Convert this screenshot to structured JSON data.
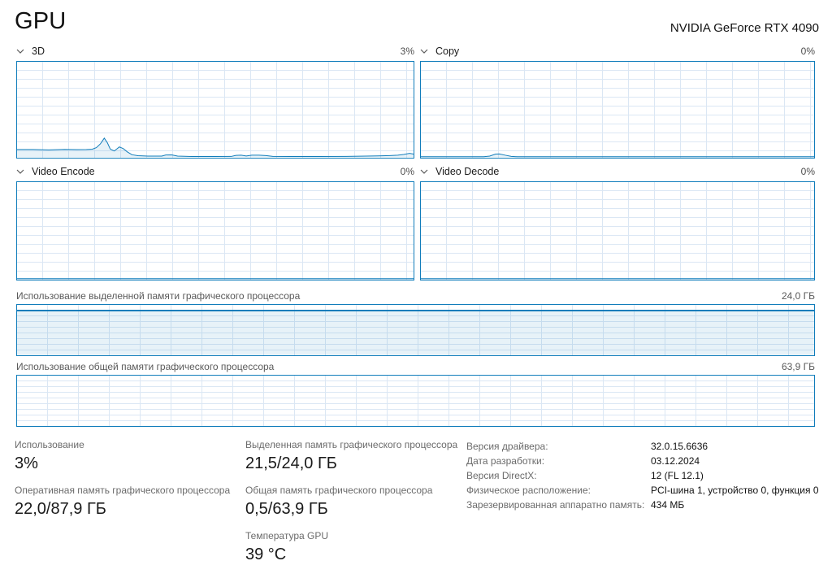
{
  "page": {
    "title": "GPU",
    "device_name": "NVIDIA GeForce RTX 4090"
  },
  "colors": {
    "accent": "#117DBB",
    "grid": "#DBE7F4",
    "chart_fill": "rgba(17,125,187,0.10)",
    "label_gray": "#6B6B6B"
  },
  "charts": [
    {
      "title": "3D",
      "value": "3%",
      "type": "area",
      "y_max_percent": 100,
      "points": [
        [
          0,
          8
        ],
        [
          0.04,
          8
        ],
        [
          0.08,
          7.6
        ],
        [
          0.12,
          8.2
        ],
        [
          0.15,
          7.9
        ],
        [
          0.175,
          8
        ],
        [
          0.19,
          8.4
        ],
        [
          0.2,
          10
        ],
        [
          0.21,
          14
        ],
        [
          0.22,
          20
        ],
        [
          0.228,
          15
        ],
        [
          0.235,
          8.5
        ],
        [
          0.245,
          6.5
        ],
        [
          0.258,
          10.8
        ],
        [
          0.268,
          9
        ],
        [
          0.278,
          5.5
        ],
        [
          0.29,
          2.5
        ],
        [
          0.305,
          1.5
        ],
        [
          0.33,
          1
        ],
        [
          0.365,
          1
        ],
        [
          0.375,
          2.2
        ],
        [
          0.39,
          2.3
        ],
        [
          0.405,
          1
        ],
        [
          0.44,
          0.6
        ],
        [
          0.5,
          0.6
        ],
        [
          0.54,
          0.7
        ],
        [
          0.552,
          1.8
        ],
        [
          0.565,
          2.1
        ],
        [
          0.578,
          1.2
        ],
        [
          0.592,
          2.1
        ],
        [
          0.61,
          2
        ],
        [
          0.628,
          1.6
        ],
        [
          0.645,
          0.8
        ],
        [
          0.69,
          0.6
        ],
        [
          0.76,
          0.6
        ],
        [
          0.83,
          0.8
        ],
        [
          0.88,
          1
        ],
        [
          0.91,
          1.3
        ],
        [
          0.94,
          1.6
        ],
        [
          0.96,
          2
        ],
        [
          0.975,
          2.8
        ],
        [
          0.99,
          4
        ],
        [
          1,
          3.2
        ]
      ]
    },
    {
      "title": "Copy",
      "value": "0%",
      "type": "area",
      "y_max_percent": 100,
      "points": [
        [
          0,
          0.4
        ],
        [
          0.16,
          0.4
        ],
        [
          0.175,
          1
        ],
        [
          0.19,
          3.2
        ],
        [
          0.2,
          3.4
        ],
        [
          0.215,
          2
        ],
        [
          0.23,
          0.8
        ],
        [
          0.245,
          0.4
        ],
        [
          1,
          0.4
        ]
      ]
    },
    {
      "title": "Video Encode",
      "value": "0%",
      "type": "area",
      "y_max_percent": 100,
      "points": [
        [
          0,
          0.4
        ],
        [
          1,
          0.4
        ]
      ]
    },
    {
      "title": "Video Decode",
      "value": "0%",
      "type": "area",
      "y_max_percent": 100,
      "points": [
        [
          0,
          0.4
        ],
        [
          1,
          0.4
        ]
      ]
    }
  ],
  "memory": [
    {
      "title": "Использование выделенной памяти графического процессора",
      "value": "24,0 ГБ",
      "usage_percent": 89.6
    },
    {
      "title": "Использование общей памяти графического процессора",
      "value": "63,9 ГБ",
      "usage_percent": 0.8
    }
  ],
  "stats": {
    "col1": [
      {
        "label": "Использование",
        "value": "3%"
      },
      {
        "label": "Оперативная память графического процессора",
        "value": "22,0/87,9 ГБ"
      }
    ],
    "col2": [
      {
        "label": "Выделенная память графического процессора",
        "value": "21,5/24,0 ГБ"
      },
      {
        "label": "Общая память графического процессора",
        "value": "0,5/63,9 ГБ"
      },
      {
        "label": "Температура GPU",
        "value": "39 °C"
      }
    ],
    "col3": [
      {
        "label": "Версия драйвера:",
        "value": "32.0.15.6636"
      },
      {
        "label": "Дата разработки:",
        "value": "03.12.2024"
      },
      {
        "label": "Версия DirectX:",
        "value": "12 (FL 12.1)"
      },
      {
        "label": "Физическое расположение:",
        "value": "PCI-шина 1, устройство 0, функция 0"
      },
      {
        "label": "Зарезервированная аппаратно память:",
        "value": "434 МБ"
      }
    ]
  }
}
